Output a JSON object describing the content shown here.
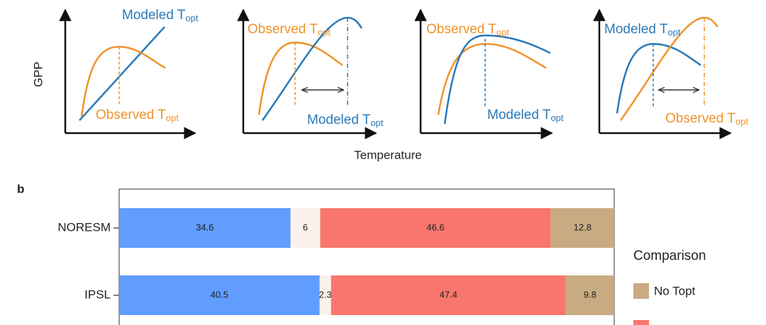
{
  "diagrams": {
    "y_label": "GPP",
    "x_label": "Temperature",
    "panels": [
      {
        "labels": [
          {
            "text": "Modeled T",
            "sub": "opt"
          },
          {
            "text": "Observed T",
            "sub": "opt"
          }
        ]
      },
      {
        "labels": [
          {
            "text": "Observed T",
            "sub": "opt"
          },
          {
            "text": "Modeled T",
            "sub": "opt"
          }
        ]
      },
      {
        "labels": [
          {
            "text": "Observed T",
            "sub": "opt"
          },
          {
            "text": "Modeled T",
            "sub": "opt"
          }
        ]
      },
      {
        "labels": [
          {
            "text": "Modeled T",
            "sub": "opt"
          },
          {
            "text": "Observed T",
            "sub": "opt"
          }
        ]
      }
    ]
  },
  "chart_data": {
    "type": "stacked-bar-horizontal",
    "panel_label": "b",
    "categories": [
      "NORESM",
      "IPSL"
    ],
    "xlim": [
      0,
      100
    ],
    "legend_title": "Comparison",
    "series": [
      {
        "color": "#619cff",
        "values": [
          34.6,
          40.5
        ]
      },
      {
        "color": "#fdf1ec",
        "values": [
          6,
          2.3
        ]
      },
      {
        "color": "#f8766d",
        "values": [
          46.6,
          47.4
        ]
      },
      {
        "name": "No Topt",
        "color": "#c8ab83",
        "values": [
          12.8,
          9.8
        ]
      }
    ]
  }
}
